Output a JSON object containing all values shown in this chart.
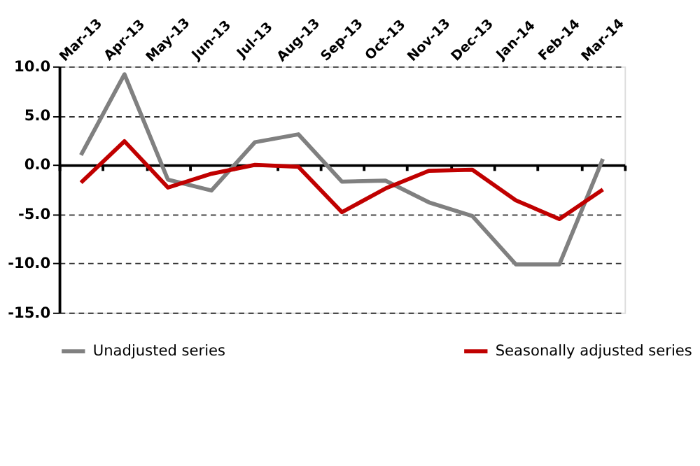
{
  "chart_data": {
    "type": "line",
    "categories": [
      "Mar-13",
      "Apr-13",
      "May-13",
      "Jun-13",
      "Jul-13",
      "Aug-13",
      "Sep-13",
      "Oct-13",
      "Nov-13",
      "Dec-13",
      "Jan-14",
      "Feb-14",
      "Mar-14"
    ],
    "series": [
      {
        "name": "Unadjusted series",
        "color": "#808080",
        "values": [
          1.0,
          9.2,
          -1.5,
          -2.6,
          2.3,
          3.1,
          -1.7,
          -1.6,
          -3.8,
          -5.2,
          -10.1,
          -10.1,
          0.6
        ]
      },
      {
        "name": "Seasonally adjusted series",
        "color": "#c00000",
        "values": [
          -1.8,
          2.4,
          -2.3,
          -0.9,
          0.0,
          -0.2,
          -4.8,
          -2.4,
          -0.6,
          -0.5,
          -3.6,
          -5.5,
          -2.5
        ]
      }
    ],
    "ylim": [
      -15,
      10
    ],
    "yticks": [
      {
        "value": -15,
        "label": "-15.0"
      },
      {
        "value": -10,
        "label": "-10.0"
      },
      {
        "value": -5,
        "label": "-5.0"
      },
      {
        "value": 0,
        "label": "0.0"
      },
      {
        "value": 5,
        "label": "5.0"
      },
      {
        "value": 10,
        "label": "10.0"
      }
    ],
    "grid": "y",
    "legend": "bottom",
    "marker": "none",
    "line_style": "solid"
  }
}
